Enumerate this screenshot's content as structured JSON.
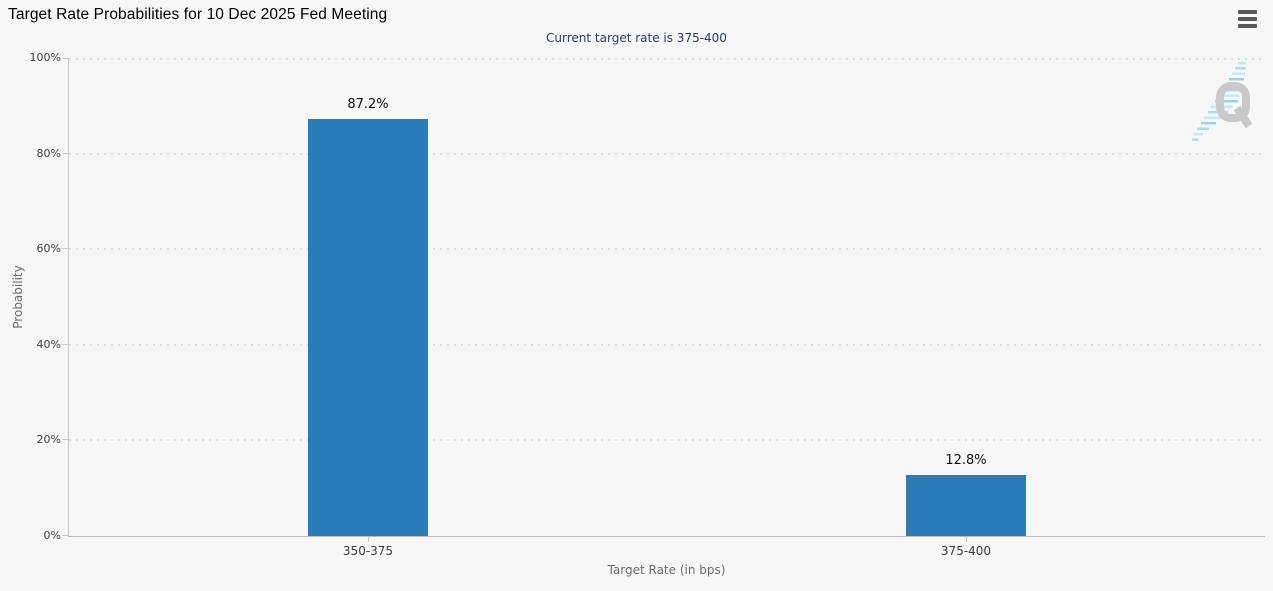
{
  "header": {
    "title": "Target Rate Probabilities for 10 Dec 2025 Fed Meeting",
    "subtitle": "Current target rate is 375-400"
  },
  "icons": {
    "menu": "hamburger-menu-icon",
    "watermark": "q-logo-watermark"
  },
  "colors": {
    "background": "#f7f7f7",
    "bar": "#2a7db9",
    "subtitle_text": "#2d3a6b",
    "grid_dots": "#dedede",
    "axis_line": "#c9c9c9",
    "watermark_gray": "#c7c7c7",
    "watermark_blue": "#a6dbf2"
  },
  "watermark": {
    "letter": "Q"
  },
  "chart_data": {
    "type": "bar",
    "title": "Target Rate Probabilities for 10 Dec 2025 Fed Meeting",
    "subtitle": "Current target rate is 375-400",
    "categories": [
      "350-375",
      "375-400"
    ],
    "values": [
      87.2,
      12.8
    ],
    "value_labels": [
      "87.2%",
      "12.8%"
    ],
    "xlabel": "Target Rate (in bps)",
    "ylabel": "Probability",
    "ylim": [
      0,
      100
    ],
    "ytick_step": 20,
    "ytick_labels": [
      "0%",
      "20%",
      "40%",
      "60%",
      "80%",
      "100%"
    ],
    "grid": "horizontal-dotted",
    "legend": "none",
    "bar_color": "#2a7db9"
  }
}
